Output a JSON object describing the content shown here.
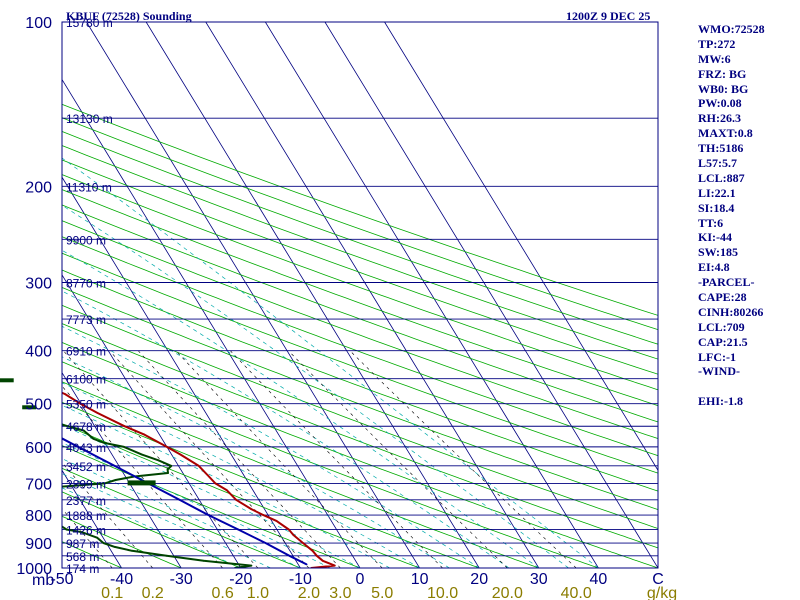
{
  "header": {
    "station": "KBUF (72528) Sounding",
    "time": "1200Z  9 DEC 25"
  },
  "indices": [
    "WMO:72528",
    "TP:272",
    "MW:6",
    "FRZ: BG",
    "WB0: BG",
    "PW:0.08",
    "RH:26.3",
    "MAXT:0.8",
    "TH:5186",
    "L57:5.7",
    "LCL:887",
    "LI:22.1",
    "SI:18.4",
    "TT:6",
    "KI:-44",
    "SW:185",
    "EI:4.8",
    "-PARCEL-",
    "CAPE:28",
    "CINH:80266",
    "LCL:709",
    "CAP:21.5",
    "LFC:-1",
    "-WIND-",
    "",
    "EHI:-1.8"
  ],
  "colors": {
    "frame": "#000080",
    "isobar": "#000080",
    "isotherm": "#000080",
    "dry_adiabat": "#00aa00",
    "moist_adiabat": "#00aaaa",
    "mixing_ratio": "#000000",
    "temperature": "#aa0000",
    "dewpoint": "#004400",
    "parcel": "#0000aa",
    "x_labels": "#000080",
    "mr_labels": "#8b7d00"
  },
  "chart_data": {
    "type": "line",
    "title": "KBUF (72528) Sounding",
    "pressure_axis": {
      "unit": "mb",
      "range": [
        100,
        1000
      ],
      "tick_labels": [
        "100",
        "200",
        "300",
        "400",
        "500",
        "600",
        "700",
        "800",
        "900",
        "1000"
      ],
      "ticks": [
        100,
        200,
        300,
        400,
        500,
        600,
        700,
        800,
        900,
        1000
      ]
    },
    "temperature_axis": {
      "unit": "C",
      "range": [
        -50,
        50
      ],
      "tick_labels": [
        "-50",
        "-40",
        "-30",
        "-20",
        "-10",
        "0",
        "10",
        "20",
        "30",
        "40",
        "C"
      ],
      "ticks": [
        -50,
        -40,
        -30,
        -20,
        -10,
        0,
        10,
        20,
        30,
        40
      ]
    },
    "mixing_ratio_axis": {
      "unit": "g/kg",
      "tick_labels": [
        "0.1",
        "0.2",
        "0.6",
        "1.0",
        "2.0",
        "3.0",
        "5.0",
        "10.0",
        "20.0",
        "40.0",
        "g/kg"
      ],
      "values": [
        0.1,
        0.2,
        0.6,
        1.0,
        2.0,
        3.0,
        5.0,
        10.0,
        20.0,
        40.0
      ]
    },
    "height_labels": [
      {
        "p": 100,
        "label": "15780 m"
      },
      {
        "p": 150,
        "label": "13130 m"
      },
      {
        "p": 200,
        "label": "11310 m"
      },
      {
        "p": 250,
        "label": "9900 m"
      },
      {
        "p": 300,
        "label": "8770 m"
      },
      {
        "p": 350,
        "label": "7773 m"
      },
      {
        "p": 400,
        "label": "6910 m"
      },
      {
        "p": 450,
        "label": "6100 m"
      },
      {
        "p": 500,
        "label": "5350 m"
      },
      {
        "p": 550,
        "label": "4678 m"
      },
      {
        "p": 600,
        "label": "4043 m"
      },
      {
        "p": 650,
        "label": "3452 m"
      },
      {
        "p": 700,
        "label": "2899 m"
      },
      {
        "p": 750,
        "label": "2377 m"
      },
      {
        "p": 800,
        "label": "1888 m"
      },
      {
        "p": 850,
        "label": "1426 m"
      },
      {
        "p": 900,
        "label": "987 m"
      },
      {
        "p": 950,
        "label": "568 m"
      },
      {
        "p": 1000,
        "label": "174 m"
      }
    ],
    "series": [
      {
        "name": "Temperature",
        "points": [
          [
            1000,
            -8.2
          ],
          [
            990,
            -4.0
          ],
          [
            970,
            -5.5
          ],
          [
            950,
            -6.0
          ],
          [
            930,
            -6.2
          ],
          [
            900,
            -7.0
          ],
          [
            870,
            -7.8
          ],
          [
            850,
            -8.0
          ],
          [
            820,
            -9.2
          ],
          [
            800,
            -10.8
          ],
          [
            780,
            -12.2
          ],
          [
            750,
            -13.8
          ],
          [
            720,
            -14.4
          ],
          [
            700,
            -15.6
          ],
          [
            680,
            -16.0
          ],
          [
            650,
            -16.6
          ],
          [
            620,
            -18.5
          ],
          [
            600,
            -20.0
          ],
          [
            570,
            -22.5
          ],
          [
            550,
            -25.0
          ],
          [
            520,
            -28.2
          ],
          [
            500,
            -30.1
          ],
          [
            480,
            -31.7
          ],
          [
            470,
            -33.2
          ],
          [
            450,
            -34.9
          ],
          [
            420,
            -36.4
          ],
          [
            400,
            -38.0
          ],
          [
            370,
            -40.3
          ],
          [
            350,
            -42.0
          ],
          [
            320,
            -45.1
          ],
          [
            300,
            -47.0
          ],
          [
            280,
            -47.8
          ],
          [
            270,
            -47.5
          ],
          [
            260,
            -46.0
          ],
          [
            250,
            -44.5
          ],
          [
            240,
            -43.3
          ],
          [
            220,
            -41.5
          ],
          [
            200,
            -40.1
          ],
          [
            185,
            -40.2
          ],
          [
            170,
            -40.6
          ],
          [
            150,
            -39.5
          ],
          [
            130,
            -38.4
          ],
          [
            115,
            -38.0
          ],
          [
            100,
            -37.0
          ]
        ]
      },
      {
        "name": "Dewpoint",
        "points": [
          [
            1000,
            -21.0
          ],
          [
            990,
            -18.0
          ],
          [
            970,
            -25.5
          ],
          [
            950,
            -31.2
          ],
          [
            930,
            -36.5
          ],
          [
            915,
            -39.0
          ],
          [
            900,
            -40.5
          ],
          [
            880,
            -41.0
          ],
          [
            860,
            -43.0
          ],
          [
            850,
            -45.3
          ],
          [
            830,
            -46.2
          ],
          [
            815,
            -47.0
          ],
          [
            800,
            -49.3
          ],
          [
            790,
            -50.5
          ],
          [
            770,
            -50.0
          ],
          [
            760,
            -45.5
          ],
          [
            750,
            -48.2
          ],
          [
            740,
            -49.6
          ],
          [
            730,
            -52.5
          ],
          [
            720,
            -48.5
          ],
          [
            710,
            -42.2
          ],
          [
            700,
            -34.2
          ],
          [
            690,
            -32.0
          ],
          [
            680,
            -28.5
          ],
          [
            670,
            -22.5
          ],
          [
            660,
            -22.2
          ],
          [
            650,
            -21.2
          ],
          [
            635,
            -22.8
          ],
          [
            620,
            -25.0
          ],
          [
            600,
            -27.2
          ],
          [
            590,
            -30.1
          ],
          [
            580,
            -31.5
          ],
          [
            560,
            -32.3
          ],
          [
            540,
            -36.7
          ],
          [
            530,
            -36.4
          ],
          [
            520,
            -40.5
          ],
          [
            510,
            -40.7
          ],
          [
            500,
            -44.0
          ],
          [
            490,
            -40.5
          ],
          [
            480,
            -41.6
          ],
          [
            470,
            -41.8
          ],
          [
            460,
            -42.2
          ],
          [
            450,
            -44.6
          ],
          [
            440,
            -44.8
          ],
          [
            420,
            -47.0
          ],
          [
            400,
            -48.7
          ],
          [
            370,
            -53.4
          ],
          [
            350,
            -54.9
          ],
          [
            320,
            -59.3
          ],
          [
            300,
            -62.3
          ],
          [
            270,
            -64.1
          ],
          [
            250,
            -70.2
          ],
          [
            240,
            -70.3
          ],
          [
            220,
            -71.8
          ],
          [
            200,
            -71.7
          ],
          [
            170,
            -70.8
          ],
          [
            150,
            -68.1
          ],
          [
            130,
            -66.4
          ],
          [
            115,
            -64.1
          ],
          [
            100,
            -62.8
          ]
        ]
      },
      {
        "name": "Parcel",
        "points": [
          [
            985,
            -8.6
          ],
          [
            950,
            -10.6
          ],
          [
            900,
            -13.3
          ],
          [
            850,
            -16.5
          ],
          [
            800,
            -20.0
          ],
          [
            750,
            -23.3
          ],
          [
            700,
            -26.9
          ],
          [
            650,
            -30.7
          ],
          [
            600,
            -34.9
          ],
          [
            550,
            -39.4
          ],
          [
            500,
            -44.7
          ],
          [
            450,
            -50.3
          ],
          [
            400,
            -56.7
          ],
          [
            350,
            -64.0
          ],
          [
            300,
            -72.8
          ],
          [
            250,
            -81.6
          ],
          [
            200,
            -92.3
          ],
          [
            150,
            -105.8
          ],
          [
            112,
            -118.0
          ]
        ]
      }
    ]
  }
}
